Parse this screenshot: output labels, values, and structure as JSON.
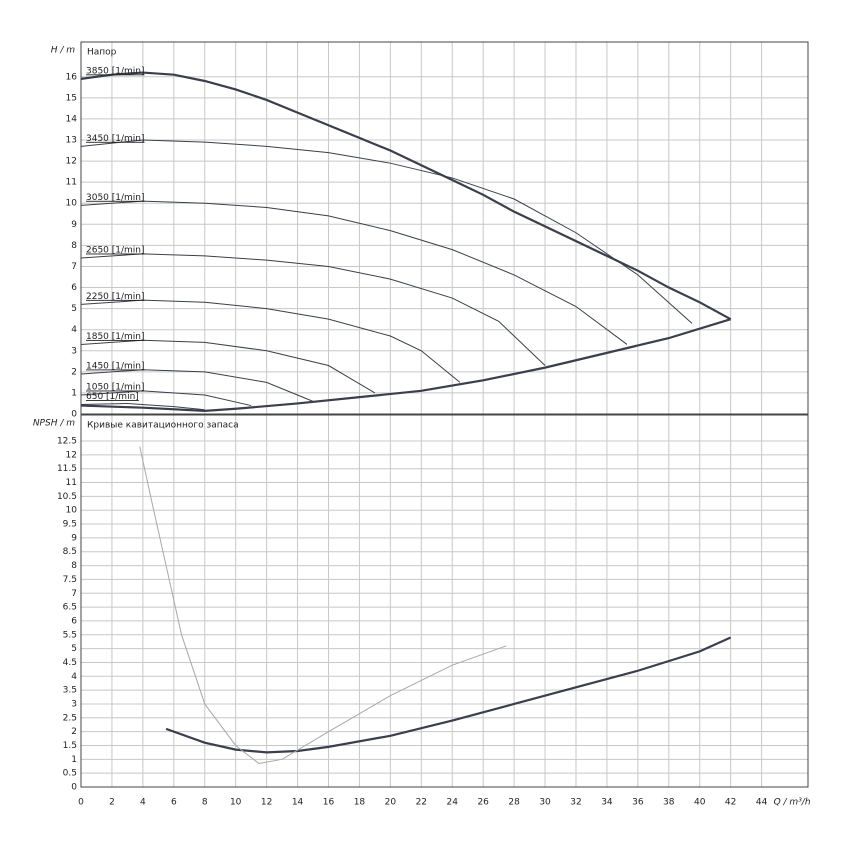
{
  "chart_data": [
    {
      "type": "line",
      "y_label": "H / m",
      "title": "Напор",
      "xlim": [
        0,
        47
      ],
      "xticks": [
        0,
        2,
        4,
        6,
        8,
        10,
        12,
        14,
        16,
        18,
        20,
        22,
        24,
        26,
        28,
        30,
        32,
        34,
        36,
        38,
        40,
        42,
        44
      ],
      "ylim": [
        0,
        17.65
      ],
      "yticks": [
        0,
        1,
        2,
        3,
        4,
        5,
        6,
        7,
        8,
        9,
        10,
        11,
        12,
        13,
        14,
        15,
        16
      ],
      "grid": true,
      "series": [
        {
          "color": "#3a3f4b",
          "line_style": "bold",
          "x": [
            0,
            2,
            4,
            6,
            8,
            10,
            12,
            14,
            16,
            18,
            20,
            22,
            24,
            26,
            28,
            30,
            32,
            34,
            36,
            38,
            40,
            42
          ],
          "values": [
            15.9,
            16.1,
            16.2,
            16.1,
            15.8,
            15.4,
            14.9,
            14.3,
            13.7,
            13.1,
            12.5,
            11.8,
            11.1,
            10.4,
            9.6,
            8.9,
            8.2,
            7.5,
            6.8,
            6.0,
            5.3,
            4.5
          ]
        },
        {
          "color": "#3a3f4b",
          "line_style": "bold",
          "x": [
            0,
            4,
            8,
            10,
            14,
            18,
            22,
            26,
            30,
            34,
            38,
            42
          ],
          "values": [
            0.4,
            0.3,
            0.15,
            0.25,
            0.5,
            0.8,
            1.1,
            1.6,
            2.2,
            2.9,
            3.6,
            4.5
          ]
        },
        {
          "name": "3850 [1/min]",
          "color": "#3a3f4b",
          "line_style": "thin",
          "x": [
            0,
            2,
            4,
            6
          ],
          "values": [
            15.9,
            16.1,
            16.2,
            16.1
          ]
        },
        {
          "name": "3450 [1/min]",
          "color": "#3a3f4b",
          "line_style": "thin",
          "x": [
            0,
            4,
            8,
            12,
            16,
            20,
            24,
            28,
            32,
            36,
            39.5
          ],
          "values": [
            12.7,
            13.0,
            12.9,
            12.7,
            12.4,
            11.9,
            11.2,
            10.2,
            8.6,
            6.6,
            4.3
          ]
        },
        {
          "name": "3050 [1/min]",
          "color": "#3a3f4b",
          "line_style": "thin",
          "x": [
            0,
            4,
            8,
            12,
            16,
            20,
            24,
            28,
            32,
            35.3
          ],
          "values": [
            9.9,
            10.1,
            10.0,
            9.8,
            9.4,
            8.7,
            7.8,
            6.6,
            5.1,
            3.3
          ]
        },
        {
          "name": "2650 [1/min]",
          "color": "#3a3f4b",
          "line_style": "thin",
          "x": [
            0,
            4,
            8,
            12,
            16,
            20,
            24,
            27,
            30
          ],
          "values": [
            7.4,
            7.6,
            7.5,
            7.3,
            7.0,
            6.4,
            5.5,
            4.4,
            2.3
          ]
        },
        {
          "name": "2250 [1/min]",
          "color": "#3a3f4b",
          "line_style": "thin",
          "x": [
            0,
            4,
            8,
            12,
            16,
            20,
            22,
            24.5
          ],
          "values": [
            5.2,
            5.4,
            5.3,
            5.0,
            4.5,
            3.7,
            3.0,
            1.5
          ]
        },
        {
          "name": "1850 [1/min]",
          "color": "#3a3f4b",
          "line_style": "thin",
          "x": [
            0,
            4,
            8,
            12,
            16,
            19
          ],
          "values": [
            3.3,
            3.5,
            3.4,
            3.0,
            2.3,
            1.0
          ]
        },
        {
          "name": "1450 [1/min]",
          "color": "#3a3f4b",
          "line_style": "thin",
          "x": [
            0,
            4,
            8,
            12,
            15
          ],
          "values": [
            1.9,
            2.1,
            2.0,
            1.5,
            0.6
          ]
        },
        {
          "name": "1050 [1/min]",
          "color": "#3a3f4b",
          "line_style": "thin",
          "x": [
            0,
            4,
            8,
            11
          ],
          "values": [
            0.9,
            1.1,
            0.9,
            0.4
          ]
        },
        {
          "name": "650 [1/min]",
          "color": "#3a3f4b",
          "line_style": "thin",
          "x": [
            0,
            3,
            6,
            8
          ],
          "values": [
            0.45,
            0.5,
            0.35,
            0.2
          ]
        }
      ]
    },
    {
      "type": "line",
      "y_label": "NPSH / m",
      "title": "Кривые кавитационного запаса",
      "x_label": "Q / m³/h",
      "xlim": [
        0,
        47
      ],
      "xticks": [
        0,
        2,
        4,
        6,
        8,
        10,
        12,
        14,
        16,
        18,
        20,
        22,
        24,
        26,
        28,
        30,
        32,
        34,
        36,
        38,
        40,
        42,
        44
      ],
      "ylim": [
        0,
        13.44
      ],
      "yticks": [
        0,
        0.5,
        1,
        1.5,
        2,
        2.5,
        3,
        3.5,
        4,
        4.5,
        5,
        5.5,
        6,
        6.5,
        7,
        7.5,
        8,
        8.5,
        9,
        9.5,
        10,
        10.5,
        11,
        11.5,
        12,
        12.5
      ],
      "grid": true,
      "series": [
        {
          "color": "#3a3f4b",
          "line_style": "bold",
          "x": [
            5.5,
            8,
            10,
            12,
            14,
            16,
            20,
            24,
            28,
            32,
            36,
            40,
            42
          ],
          "values": [
            2.1,
            1.6,
            1.35,
            1.25,
            1.3,
            1.45,
            1.85,
            2.4,
            3.0,
            3.6,
            4.2,
            4.9,
            5.4
          ]
        },
        {
          "color": "#a8a8a8",
          "line_style": "thin",
          "x": [
            3.8,
            4.5,
            5.5,
            6.5,
            8,
            10,
            11.5,
            13,
            16,
            20,
            24,
            27.5
          ],
          "values": [
            12.3,
            10.5,
            8,
            5.5,
            3,
            1.5,
            0.85,
            1.0,
            2.0,
            3.3,
            4.4,
            5.1
          ]
        }
      ]
    }
  ]
}
